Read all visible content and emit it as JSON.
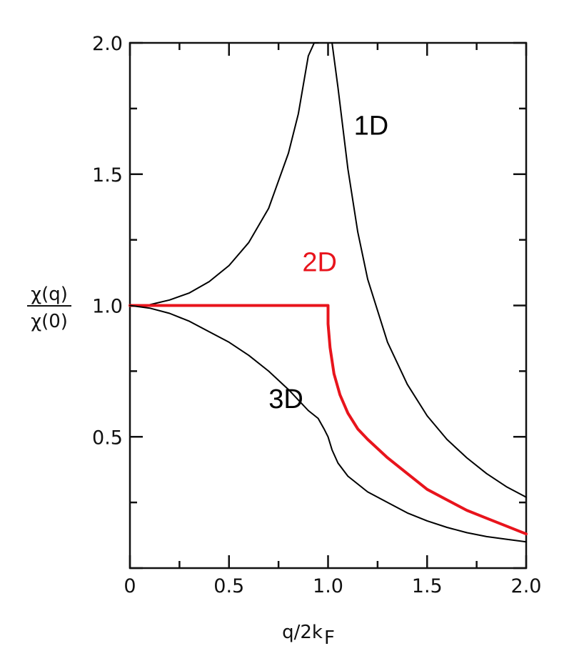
{
  "chart_data": {
    "type": "line",
    "xlabel": "q/2kF",
    "xlabel_main": "q/2k",
    "xlabel_sub": "F",
    "ylabel_numerator": "χ(q)",
    "ylabel_denominator": "χ(0)",
    "xlim": [
      0,
      2.0
    ],
    "ylim": [
      0,
      2.0
    ],
    "x_ticks": [
      {
        "value": 0,
        "label": "0"
      },
      {
        "value": 0.5,
        "label": "0.5"
      },
      {
        "value": 1.0,
        "label": "1.0"
      },
      {
        "value": 1.5,
        "label": "1.5"
      },
      {
        "value": 2.0,
        "label": "2.0"
      }
    ],
    "y_ticks": [
      {
        "value": 0.5,
        "label": "0.5"
      },
      {
        "value": 1.0,
        "label": "1.0"
      },
      {
        "value": 1.5,
        "label": "1.5"
      },
      {
        "value": 2.0,
        "label": "2.0"
      }
    ],
    "grid": false,
    "series": [
      {
        "name": "1D",
        "color": "#000000",
        "segments": [
          {
            "x": [
              0,
              0.1,
              0.2,
              0.3,
              0.4,
              0.5,
              0.6,
              0.7,
              0.8,
              0.85,
              0.9,
              0.93,
              0.95
            ],
            "y": [
              1.0,
              1.003,
              1.021,
              1.048,
              1.091,
              1.152,
              1.24,
              1.37,
              1.58,
              1.73,
              1.95,
              2.0,
              2.0
            ]
          },
          {
            "x": [
              1.02,
              1.05,
              1.1,
              1.15,
              1.2,
              1.3,
              1.4,
              1.5,
              1.6,
              1.7,
              1.8,
              1.9,
              2.0
            ],
            "y": [
              2.0,
              1.83,
              1.52,
              1.28,
              1.1,
              0.86,
              0.7,
              0.58,
              0.49,
              0.42,
              0.36,
              0.31,
              0.27
            ]
          }
        ]
      },
      {
        "name": "2D",
        "color": "#e8141c",
        "segments": [
          {
            "x": [
              0,
              0.5,
              1.0,
              1.0,
              1.01,
              1.03,
              1.06,
              1.1,
              1.15,
              1.2,
              1.3,
              1.4,
              1.5,
              1.6,
              1.7,
              1.8,
              1.9,
              2.0
            ],
            "y": [
              1.0,
              1.0,
              1.0,
              0.93,
              0.84,
              0.74,
              0.66,
              0.59,
              0.53,
              0.49,
              0.42,
              0.36,
              0.3,
              0.26,
              0.22,
              0.19,
              0.16,
              0.13
            ]
          }
        ]
      },
      {
        "name": "3D",
        "color": "#000000",
        "segments": [
          {
            "x": [
              0,
              0.1,
              0.2,
              0.3,
              0.4,
              0.5,
              0.6,
              0.7,
              0.8,
              0.9,
              0.95,
              0.98,
              1.0,
              1.02,
              1.05,
              1.1,
              1.2,
              1.3,
              1.4,
              1.5,
              1.6,
              1.7,
              1.8,
              1.9,
              2.0
            ],
            "y": [
              1.0,
              0.99,
              0.97,
              0.94,
              0.9,
              0.86,
              0.81,
              0.75,
              0.68,
              0.6,
              0.57,
              0.53,
              0.5,
              0.45,
              0.4,
              0.35,
              0.29,
              0.25,
              0.21,
              0.18,
              0.155,
              0.135,
              0.12,
              0.11,
              0.1
            ]
          }
        ]
      }
    ],
    "annotations": [
      {
        "text": "1D",
        "x": 1.13,
        "y": 1.65,
        "color": "#000000"
      },
      {
        "text": "2D",
        "x": 0.87,
        "y": 1.13,
        "color": "#e8141c"
      },
      {
        "text": "3D",
        "x": 0.7,
        "y": 0.61,
        "color": "#000000"
      }
    ]
  }
}
